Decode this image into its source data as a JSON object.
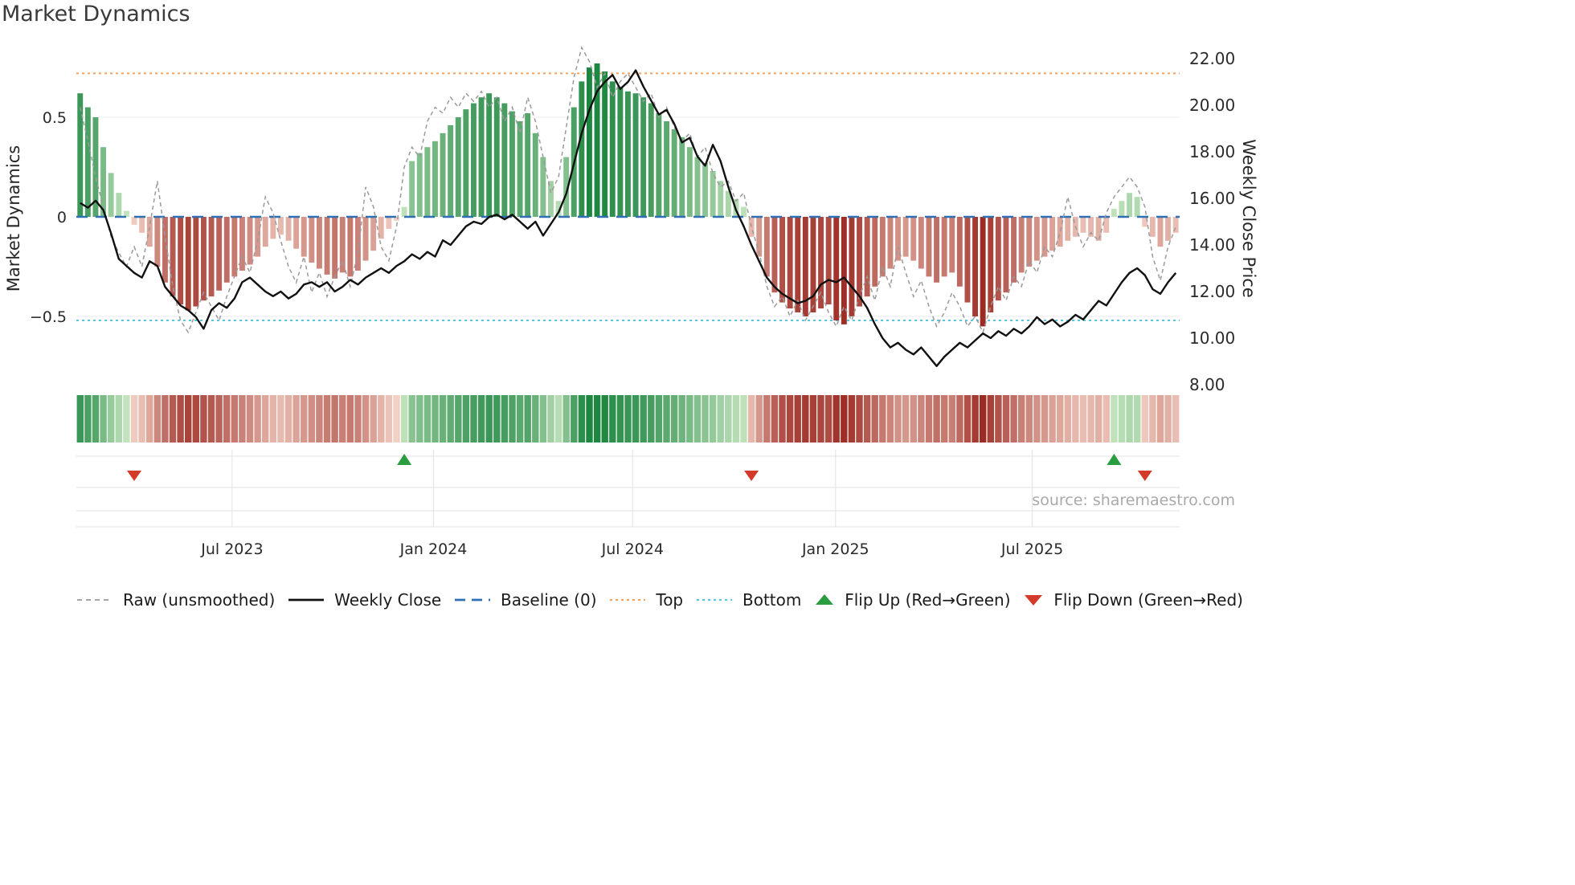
{
  "title": "Market Dynamics",
  "source": "source: sharemaestro.com",
  "axes": {
    "left_label": "Market Dynamics",
    "right_label": "Weekly Close Price"
  },
  "legend": [
    {
      "label": "Raw (unsmoothed)"
    },
    {
      "label": "Weekly Close"
    },
    {
      "label": "Baseline (0)"
    },
    {
      "label": "Top"
    },
    {
      "label": "Bottom"
    },
    {
      "label": "Flip Up (Red→Green)"
    },
    {
      "label": "Flip Down (Green→Red)"
    }
  ],
  "colors": {
    "bar_green_dark": "#1d8640",
    "bar_green_light": "#c9e7c2",
    "bar_red_dark": "#9c2b23",
    "bar_red_light": "#f6d6ca",
    "weekly_close": "#111111",
    "raw": "#9a9a9a",
    "baseline": "#2f6fb6",
    "top": "#f2a25c",
    "bottom": "#57c7e3",
    "flip_up": "#2a9d3f",
    "flip_down": "#d43a2a",
    "grid": "#ececec",
    "tick_text": "#2b2b2b"
  },
  "chart_data": {
    "type": "bar+line",
    "title": "Market Dynamics",
    "left_axis_label": "Market Dynamics",
    "right_axis_label": "Weekly Close Price",
    "left_ylim": [
      -0.87,
      0.86
    ],
    "right_ylim": [
      7.7,
      22.5
    ],
    "baseline": 0,
    "top_line": 0.72,
    "bottom_line": -0.52,
    "x_tick_labels": [
      "Jul 2023",
      "Jan 2024",
      "Jul 2024",
      "Jan 2025",
      "Jul 2025"
    ],
    "x_tick_weeks": [
      20.2,
      46.3,
      72.1,
      98.4,
      123.9
    ],
    "left_ticks": [
      {
        "label": "0.5",
        "value": 0.5
      },
      {
        "label": "0",
        "value": 0
      },
      {
        "label": "−0.5",
        "value": -0.5
      }
    ],
    "right_ticks": [
      {
        "label": "22.00",
        "value": 22
      },
      {
        "label": "20.00",
        "value": 20
      },
      {
        "label": "18.00",
        "value": 18
      },
      {
        "label": "16.00",
        "value": 16
      },
      {
        "label": "14.00",
        "value": 14
      },
      {
        "label": "12.00",
        "value": 12
      },
      {
        "label": "10.00",
        "value": 10
      },
      {
        "label": "8.00",
        "value": 8
      }
    ],
    "flip_up_weeks": [
      42,
      134
    ],
    "flip_down_weeks": [
      7,
      87,
      138
    ],
    "oscillator": [
      0.62,
      0.55,
      0.5,
      0.35,
      0.22,
      0.12,
      0.03,
      -0.04,
      -0.08,
      -0.15,
      -0.25,
      -0.33,
      -0.4,
      -0.44,
      -0.47,
      -0.45,
      -0.42,
      -0.4,
      -0.37,
      -0.33,
      -0.3,
      -0.27,
      -0.24,
      -0.2,
      -0.15,
      -0.11,
      -0.09,
      -0.12,
      -0.16,
      -0.2,
      -0.23,
      -0.26,
      -0.29,
      -0.31,
      -0.28,
      -0.3,
      -0.27,
      -0.22,
      -0.17,
      -0.11,
      -0.06,
      -0.02,
      0.05,
      0.28,
      0.32,
      0.35,
      0.38,
      0.42,
      0.46,
      0.5,
      0.54,
      0.57,
      0.6,
      0.62,
      0.6,
      0.57,
      0.53,
      0.48,
      0.52,
      0.42,
      0.3,
      0.18,
      0.08,
      0.3,
      0.55,
      0.68,
      0.75,
      0.77,
      0.73,
      0.68,
      0.65,
      0.63,
      0.62,
      0.6,
      0.57,
      0.52,
      0.48,
      0.44,
      0.4,
      0.35,
      0.3,
      0.27,
      0.23,
      0.18,
      0.13,
      0.09,
      0.05,
      -0.1,
      -0.2,
      -0.3,
      -0.38,
      -0.43,
      -0.46,
      -0.48,
      -0.5,
      -0.48,
      -0.46,
      -0.44,
      -0.52,
      -0.54,
      -0.5,
      -0.45,
      -0.4,
      -0.35,
      -0.3,
      -0.26,
      -0.22,
      -0.2,
      -0.22,
      -0.26,
      -0.3,
      -0.33,
      -0.3,
      -0.28,
      -0.35,
      -0.43,
      -0.5,
      -0.55,
      -0.48,
      -0.42,
      -0.38,
      -0.33,
      -0.28,
      -0.25,
      -0.22,
      -0.2,
      -0.17,
      -0.15,
      -0.12,
      -0.1,
      -0.08,
      -0.1,
      -0.12,
      -0.08,
      0.04,
      0.08,
      0.12,
      0.1,
      -0.05,
      -0.1,
      -0.15,
      -0.12,
      -0.08
    ],
    "raw": [
      0.55,
      0.38,
      0.2,
      0.05,
      -0.1,
      -0.18,
      -0.25,
      -0.15,
      -0.25,
      -0.05,
      0.18,
      -0.1,
      -0.35,
      -0.52,
      -0.58,
      -0.48,
      -0.38,
      -0.45,
      -0.52,
      -0.4,
      -0.3,
      -0.2,
      -0.28,
      -0.12,
      0.1,
      0.02,
      -0.12,
      -0.25,
      -0.33,
      -0.2,
      -0.38,
      -0.28,
      -0.4,
      -0.3,
      -0.22,
      -0.35,
      -0.18,
      0.15,
      0.05,
      -0.15,
      -0.22,
      -0.05,
      0.25,
      0.35,
      0.3,
      0.48,
      0.55,
      0.52,
      0.6,
      0.55,
      0.62,
      0.58,
      0.63,
      0.55,
      0.6,
      0.48,
      0.55,
      0.42,
      0.6,
      0.48,
      0.3,
      0.12,
      0.2,
      0.45,
      0.7,
      0.85,
      0.78,
      0.65,
      0.72,
      0.6,
      0.68,
      0.72,
      0.65,
      0.58,
      0.62,
      0.5,
      0.55,
      0.45,
      0.38,
      0.42,
      0.3,
      0.35,
      0.22,
      0.15,
      0.18,
      0.08,
      0.12,
      -0.05,
      -0.18,
      -0.35,
      -0.45,
      -0.4,
      -0.5,
      -0.42,
      -0.52,
      -0.45,
      -0.38,
      -0.48,
      -0.55,
      -0.45,
      -0.52,
      -0.4,
      -0.3,
      -0.42,
      -0.25,
      -0.35,
      -0.15,
      -0.28,
      -0.4,
      -0.32,
      -0.45,
      -0.55,
      -0.48,
      -0.38,
      -0.45,
      -0.55,
      -0.5,
      -0.58,
      -0.45,
      -0.35,
      -0.42,
      -0.3,
      -0.35,
      -0.22,
      -0.28,
      -0.15,
      -0.2,
      -0.08,
      0.1,
      -0.05,
      -0.15,
      -0.08,
      -0.12,
      0.02,
      0.1,
      0.15,
      0.2,
      0.15,
      0.05,
      -0.2,
      -0.32,
      -0.15,
      -0.05
    ],
    "weekly_close": [
      15.8,
      15.6,
      15.9,
      15.5,
      14.5,
      13.4,
      13.1,
      12.8,
      12.6,
      13.3,
      13.1,
      12.2,
      11.8,
      11.4,
      11.2,
      10.9,
      10.4,
      11.2,
      11.5,
      11.3,
      11.7,
      12.4,
      12.6,
      12.3,
      12.0,
      11.8,
      12.0,
      11.7,
      11.9,
      12.3,
      12.4,
      12.2,
      12.4,
      12.0,
      12.2,
      12.5,
      12.3,
      12.6,
      12.8,
      13.0,
      12.8,
      13.1,
      13.3,
      13.6,
      13.4,
      13.7,
      13.5,
      14.2,
      14.0,
      14.4,
      14.8,
      15.0,
      14.9,
      15.2,
      15.3,
      15.1,
      15.3,
      15.0,
      14.7,
      15.0,
      14.4,
      14.9,
      15.4,
      16.2,
      17.5,
      18.8,
      19.8,
      20.6,
      21.0,
      21.3,
      20.7,
      21.0,
      21.5,
      20.8,
      20.2,
      19.6,
      19.8,
      19.2,
      18.4,
      18.6,
      17.8,
      17.4,
      18.3,
      17.6,
      16.5,
      15.5,
      14.8,
      14.0,
      13.3,
      12.6,
      12.2,
      11.9,
      11.7,
      11.5,
      11.6,
      11.8,
      12.3,
      12.5,
      12.4,
      12.6,
      12.2,
      11.8,
      11.3,
      10.6,
      10.0,
      9.6,
      9.8,
      9.5,
      9.3,
      9.6,
      9.2,
      8.8,
      9.2,
      9.5,
      9.8,
      9.6,
      9.9,
      10.2,
      10.0,
      10.3,
      10.1,
      10.4,
      10.2,
      10.5,
      10.9,
      10.6,
      10.8,
      10.5,
      10.7,
      11.0,
      10.8,
      11.2,
      11.6,
      11.4,
      11.9,
      12.4,
      12.8,
      13.0,
      12.7,
      12.1,
      11.9,
      12.4,
      12.8
    ]
  }
}
